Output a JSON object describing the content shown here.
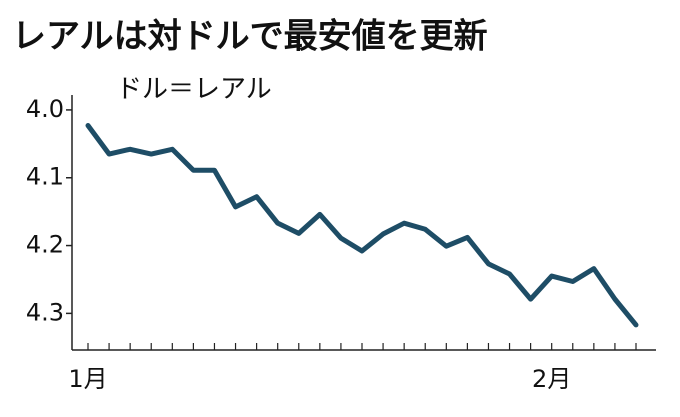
{
  "chart_data": {
    "type": "line",
    "title": "レアルは対ドルで最安値を更新",
    "subtitle": "ドル＝レアル",
    "categories": [
      "1月",
      null,
      null,
      null,
      null,
      null,
      null,
      null,
      null,
      null,
      null,
      null,
      null,
      null,
      null,
      null,
      null,
      null,
      null,
      null,
      null,
      null,
      "2月",
      null,
      null,
      null,
      null
    ],
    "series": [
      {
        "name": "ドル＝レアル",
        "color": "#1e4d66",
        "values": [
          4.023,
          4.065,
          4.058,
          4.065,
          4.058,
          4.089,
          4.089,
          4.143,
          4.128,
          4.167,
          4.182,
          4.154,
          4.189,
          4.208,
          4.183,
          4.167,
          4.176,
          4.201,
          4.188,
          4.227,
          4.242,
          4.279,
          4.245,
          4.253,
          4.234,
          4.279,
          4.317
        ]
      }
    ],
    "ylim": [
      4.354,
      3.978
    ],
    "yticks": [
      {
        "value": 4,
        "label": "4.0"
      },
      4.1,
      4.2,
      4.3
    ]
  }
}
